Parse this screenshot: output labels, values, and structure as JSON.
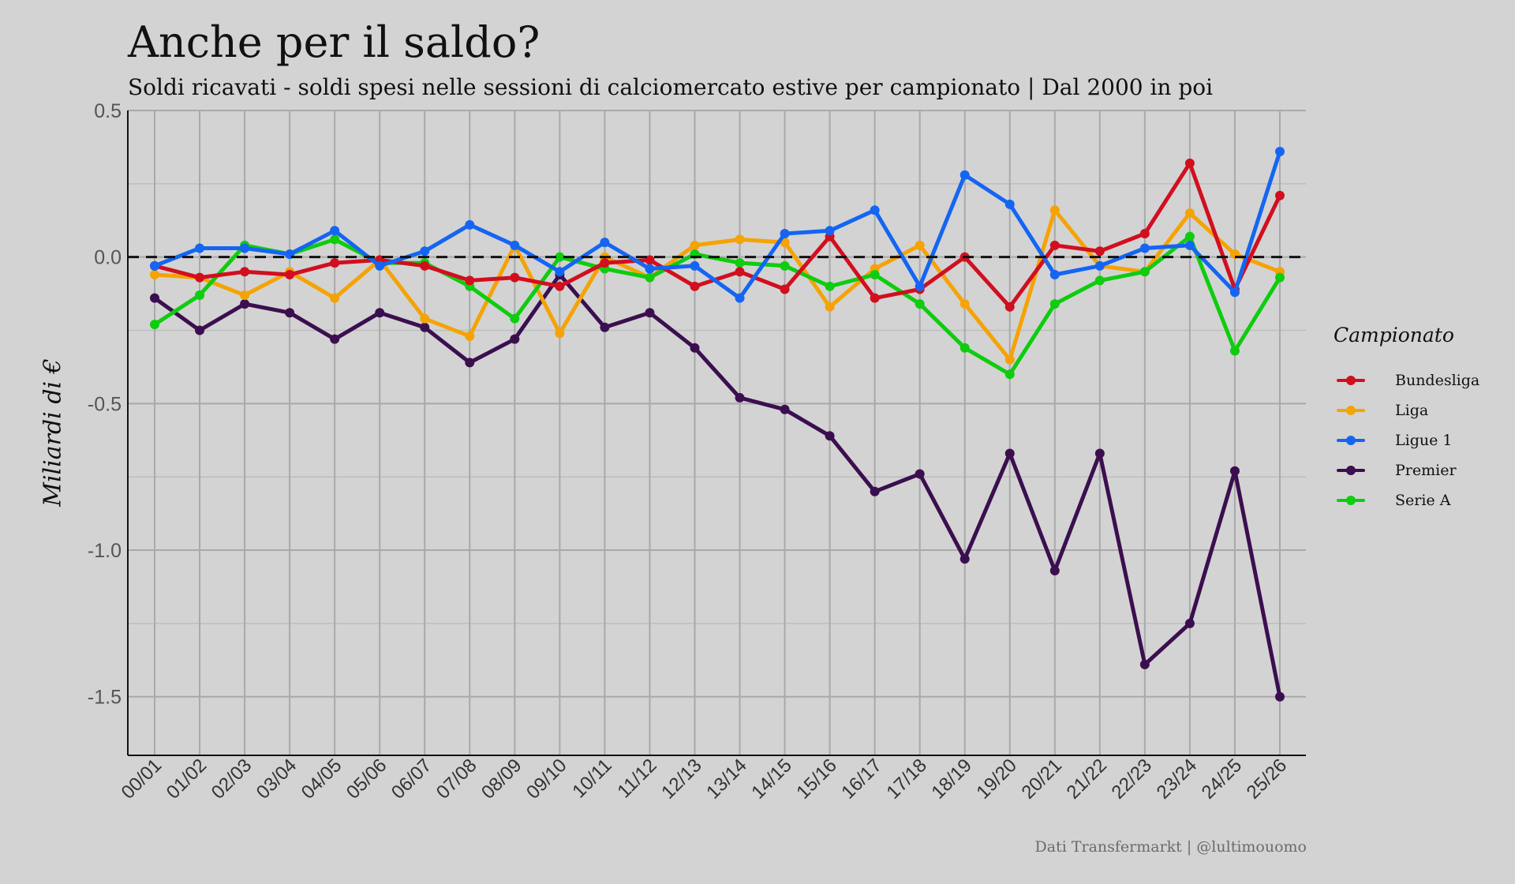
{
  "chart_data": {
    "type": "line",
    "title": "Anche per il saldo?",
    "subtitle": "Soldi ricavati - soldi spesi nelle sessioni di calciomercato estive per campionato | Dal 2000 in poi",
    "ylabel": "Miliardi di €",
    "xlabel": "",
    "caption": "Dati Transfermarkt | @lultimouomo",
    "ylim": [
      -1.7,
      0.5
    ],
    "yticks": [
      0.5,
      0.0,
      -0.5,
      -1.0,
      -1.5
    ],
    "ytick_labels": [
      "0.5",
      "0.0",
      "-0.5",
      "-1.0",
      "-1.5"
    ],
    "reference_line": {
      "y": 0,
      "style": "dashed",
      "color": "#111111"
    },
    "grid": true,
    "legend": {
      "title": "Campionato",
      "position": "right"
    },
    "categories": [
      "00/01",
      "01/02",
      "02/03",
      "03/04",
      "04/05",
      "05/06",
      "06/07",
      "07/08",
      "08/09",
      "09/10",
      "10/11",
      "11/12",
      "12/13",
      "13/14",
      "14/15",
      "15/16",
      "16/17",
      "17/18",
      "18/19",
      "19/20",
      "20/21",
      "21/22",
      "22/23",
      "23/24",
      "24/25",
      "25/26"
    ],
    "series": [
      {
        "name": "Premier",
        "color": "#3b0f4f",
        "values": [
          -0.14,
          -0.25,
          -0.16,
          -0.19,
          -0.28,
          -0.19,
          -0.24,
          -0.36,
          -0.28,
          -0.06,
          -0.24,
          -0.19,
          -0.31,
          -0.48,
          -0.52,
          -0.61,
          -0.8,
          -0.74,
          -1.03,
          -0.67,
          -1.07,
          -0.67,
          -1.39,
          -1.25,
          -0.73,
          -1.5
        ]
      },
      {
        "name": "Liga",
        "color": "#f5a300",
        "values": [
          -0.06,
          -0.07,
          -0.13,
          -0.05,
          -0.14,
          -0.01,
          -0.21,
          -0.27,
          0.04,
          -0.26,
          0.0,
          -0.07,
          0.04,
          0.06,
          0.05,
          -0.17,
          -0.04,
          0.04,
          -0.16,
          -0.35,
          0.16,
          -0.03,
          -0.05,
          0.15,
          0.01,
          -0.05
        ]
      },
      {
        "name": "Serie A",
        "color": "#0fcc0f",
        "values": [
          -0.23,
          -0.13,
          0.04,
          0.01,
          0.06,
          -0.02,
          -0.02,
          -0.1,
          -0.21,
          0.0,
          -0.04,
          -0.07,
          0.01,
          -0.02,
          -0.03,
          -0.1,
          -0.06,
          -0.16,
          -0.31,
          -0.4,
          -0.16,
          -0.08,
          -0.05,
          0.07,
          -0.32,
          -0.07
        ]
      },
      {
        "name": "Bundesliga",
        "color": "#d10f1f",
        "values": [
          -0.03,
          -0.07,
          -0.05,
          -0.06,
          -0.02,
          -0.01,
          -0.03,
          -0.08,
          -0.07,
          -0.1,
          -0.02,
          -0.01,
          -0.1,
          -0.05,
          -0.11,
          0.07,
          -0.14,
          -0.11,
          0.0,
          -0.17,
          0.04,
          0.02,
          0.08,
          0.32,
          -0.11,
          0.21
        ]
      },
      {
        "name": "Ligue 1",
        "color": "#1465f2",
        "values": [
          -0.03,
          0.03,
          0.03,
          0.01,
          0.09,
          -0.03,
          0.02,
          0.11,
          0.04,
          -0.05,
          0.05,
          -0.04,
          -0.03,
          -0.14,
          0.08,
          0.09,
          0.16,
          -0.1,
          0.28,
          0.18,
          -0.06,
          -0.03,
          0.03,
          0.04,
          -0.12,
          0.36
        ]
      }
    ],
    "legend_order": [
      "Bundesliga",
      "Liga",
      "Ligue 1",
      "Premier",
      "Serie A"
    ]
  }
}
